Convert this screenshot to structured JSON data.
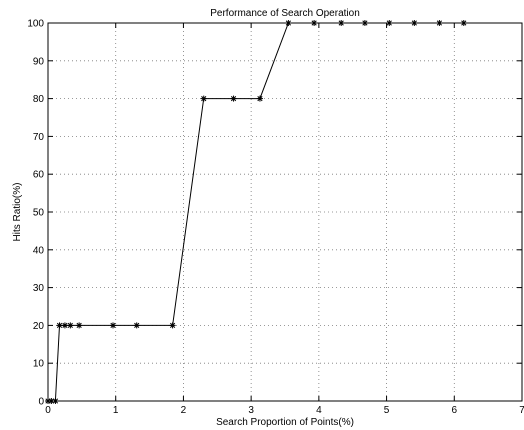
{
  "chart_data": {
    "type": "line",
    "title": "Performance of Search Operation",
    "xlabel": "Search Proportion of Points(%)",
    "ylabel": "Hits Ratio(%)",
    "xlim": [
      0,
      7
    ],
    "ylim": [
      0,
      100
    ],
    "xticks": [
      0,
      1,
      2,
      3,
      4,
      5,
      6,
      7
    ],
    "yticks": [
      0,
      10,
      20,
      30,
      40,
      50,
      60,
      70,
      80,
      90,
      100
    ],
    "grid": true,
    "marker": "asterisk",
    "series": [
      {
        "color": "#000000",
        "x": [
          0.0,
          0.05,
          0.11,
          0.17,
          0.25,
          0.33,
          0.46,
          0.96,
          1.31,
          1.84,
          2.3,
          2.74,
          3.13,
          3.55,
          3.93,
          4.33,
          4.68,
          5.04,
          5.41,
          5.78,
          6.14
        ],
        "y": [
          0,
          0,
          0,
          20,
          20,
          20,
          20,
          20,
          20,
          20,
          80,
          80,
          80,
          100,
          100,
          100,
          100,
          100,
          100,
          100,
          100
        ]
      }
    ]
  }
}
